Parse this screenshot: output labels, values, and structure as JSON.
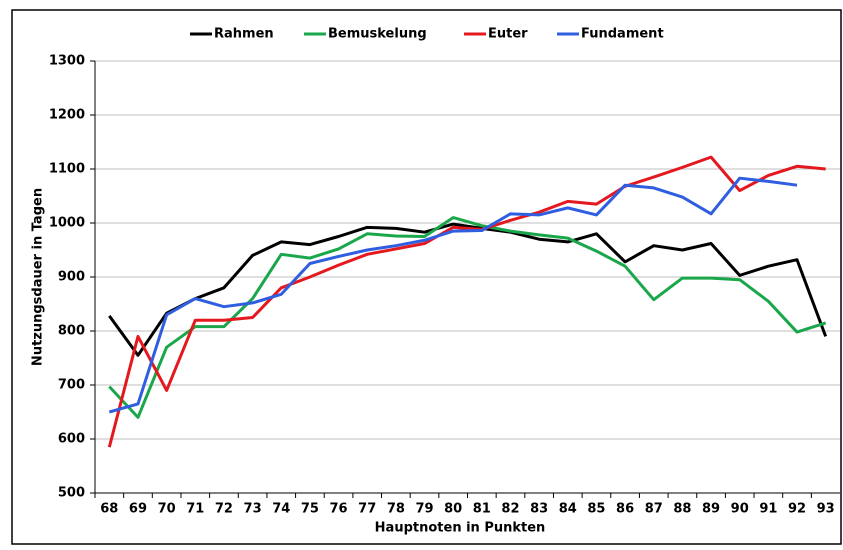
{
  "chart_data": {
    "type": "line",
    "xlabel": "Hauptnoten in Punkten",
    "ylabel": "Nutzungsdauer in Tagen",
    "categories": [
      "68",
      "69",
      "70",
      "71",
      "72",
      "73",
      "74",
      "75",
      "76",
      "77",
      "78",
      "79",
      "80",
      "81",
      "82",
      "83",
      "84",
      "85",
      "86",
      "87",
      "88",
      "89",
      "90",
      "91",
      "92",
      "93"
    ],
    "series": [
      {
        "name": "Rahmen",
        "color": "#000000",
        "values": [
          828,
          755,
          833,
          860,
          880,
          940,
          965,
          960,
          975,
          992,
          990,
          983,
          998,
          990,
          983,
          970,
          965,
          980,
          928,
          958,
          950,
          962,
          903,
          920,
          932,
          790
        ]
      },
      {
        "name": "Bemuskelung",
        "color": "#1aa64a",
        "values": [
          697,
          640,
          770,
          808,
          808,
          860,
          942,
          935,
          952,
          980,
          976,
          975,
          1010,
          995,
          985,
          978,
          972,
          948,
          920,
          858,
          898,
          898,
          895,
          855,
          798,
          815
        ]
      },
      {
        "name": "Euter",
        "color": "#e3191f",
        "values": [
          585,
          790,
          690,
          820,
          820,
          825,
          880,
          900,
          922,
          942,
          952,
          962,
          992,
          988,
          1005,
          1020,
          1040,
          1035,
          1068,
          1085,
          1103,
          1122,
          1060,
          1088,
          1105,
          1100
        ]
      },
      {
        "name": "Fundament",
        "color": "#2f5ee0",
        "values": [
          650,
          665,
          830,
          860,
          845,
          852,
          868,
          925,
          938,
          950,
          958,
          968,
          985,
          986,
          1017,
          1015,
          1028,
          1015,
          1070,
          1065,
          1048,
          1017,
          1083,
          1077,
          1070,
          null
        ]
      }
    ],
    "ylim": [
      500,
      1300
    ],
    "yticks": [
      500,
      600,
      700,
      800,
      900,
      1000,
      1100,
      1200,
      1300
    ],
    "grid": true,
    "legend": "top"
  }
}
